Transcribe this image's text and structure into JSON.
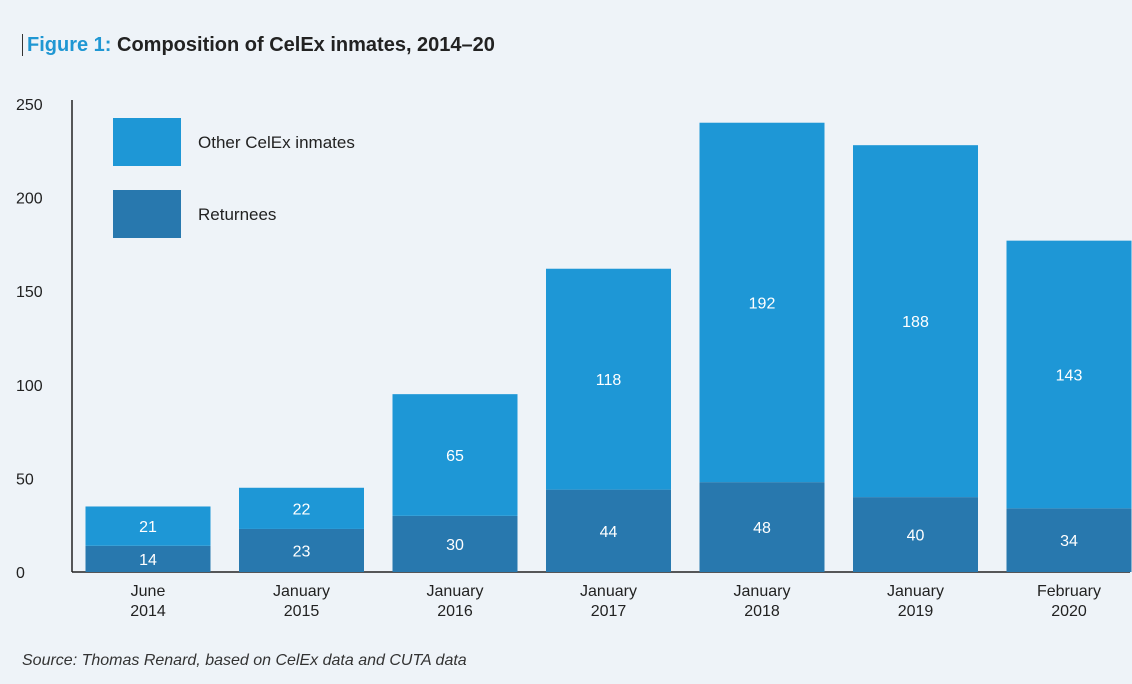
{
  "figure": {
    "label": "Figure 1:",
    "title": "Composition of CelEx inmates, 2014–20"
  },
  "source": "Source: Thomas Renard, based on CelEx data and CUTA data",
  "chart_data": {
    "type": "bar",
    "stacked": true,
    "categories": [
      [
        "June",
        "2014"
      ],
      [
        "January",
        "2015"
      ],
      [
        "January",
        "2016"
      ],
      [
        "January",
        "2017"
      ],
      [
        "January",
        "2018"
      ],
      [
        "January",
        "2019"
      ],
      [
        "February",
        "2020"
      ]
    ],
    "series": [
      {
        "name": "Returnees",
        "color": "#2878ae",
        "values": [
          14,
          23,
          30,
          44,
          48,
          40,
          34
        ]
      },
      {
        "name": "Other CelEx inmates",
        "color": "#1e97d6",
        "values": [
          21,
          22,
          65,
          118,
          192,
          188,
          143
        ]
      }
    ],
    "ylim": [
      0,
      250
    ],
    "yticks": [
      0,
      50,
      100,
      150,
      200,
      250
    ],
    "grid": false,
    "legend_position": "top-left",
    "legend_order": [
      "Other CelEx inmates",
      "Returnees"
    ]
  }
}
